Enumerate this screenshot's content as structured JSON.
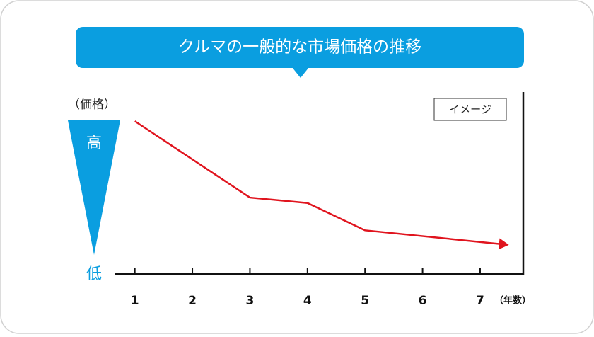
{
  "chart_data": {
    "type": "line",
    "title": "クルマの一般的な市場価格の推移",
    "y_label": "（価格）",
    "x_label": "（年数）",
    "y_high_label": "高",
    "y_low_label": "低",
    "annotation": "イメージ",
    "x": [
      1,
      3,
      4,
      5,
      7.5
    ],
    "series": [
      {
        "name": "市場価格",
        "color": "#e0141e",
        "values": [
          84,
          42,
          39,
          24,
          16
        ]
      }
    ],
    "xlim": [
      0.66,
      7.75
    ],
    "xticks": [
      1,
      2,
      3,
      4,
      5,
      6,
      7
    ],
    "ylim": [
      0,
      100
    ],
    "legend": false
  }
}
